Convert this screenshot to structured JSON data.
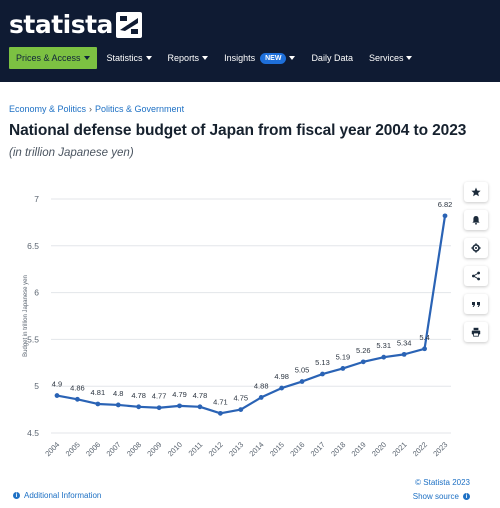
{
  "brand": {
    "name": "statista"
  },
  "nav": {
    "items": [
      {
        "label": "Prices & Access",
        "dropdown": true,
        "primary": true
      },
      {
        "label": "Statistics",
        "dropdown": true
      },
      {
        "label": "Reports",
        "dropdown": true
      },
      {
        "label": "Insights",
        "dropdown": true,
        "badge": "NEW"
      },
      {
        "label": "Daily Data",
        "dropdown": false
      },
      {
        "label": "Services",
        "dropdown": true
      }
    ]
  },
  "breadcrumb": [
    "Economy & Politics",
    "Politics & Government"
  ],
  "page": {
    "title": "National defense budget of Japan from fiscal year 2004 to 2023",
    "subtitle": "(in trillion Japanese yen)"
  },
  "toolbar": {
    "icons": [
      "star-icon",
      "bell-icon",
      "gear-icon",
      "share-icon",
      "quote-icon",
      "print-icon"
    ]
  },
  "footer": {
    "copyright": "© Statista 2023",
    "additional_info": "Additional Information",
    "show_source": "Show source"
  },
  "colors": {
    "header_bg": "#0f1b33",
    "accent_green": "#7cc142",
    "link_blue": "#1d70c4",
    "series_blue": "#2a63b5",
    "badge_blue": "#1e6fd9"
  },
  "chart_data": {
    "type": "line",
    "title": "",
    "xlabel": "",
    "ylabel": "Budget in trillion Japanese yen",
    "ylim": [
      4.5,
      7
    ],
    "yticks": [
      4.5,
      5,
      5.5,
      6,
      6.5,
      7
    ],
    "grid": true,
    "x": [
      "2004",
      "2005",
      "2006",
      "2007",
      "2008",
      "2009",
      "2010",
      "2011",
      "2012",
      "2013",
      "2014",
      "2015",
      "2016",
      "2017",
      "2018",
      "2019",
      "2020",
      "2021",
      "2022",
      "2023"
    ],
    "series": [
      {
        "name": "",
        "values": [
          4.9,
          4.86,
          4.81,
          4.8,
          4.78,
          4.77,
          4.79,
          4.78,
          4.71,
          4.75,
          4.88,
          4.98,
          5.05,
          5.13,
          5.19,
          5.26,
          5.31,
          5.34,
          5.4,
          6.82
        ],
        "labels": [
          "4.9",
          "4.86",
          "4.81",
          "4.8",
          "4.78",
          "4.77",
          "4.79",
          "4.78",
          "4.71",
          "4.75",
          "4.88",
          "4.98",
          "5.05",
          "5.13",
          "5.19",
          "5.26",
          "5.31",
          "5.34",
          "5.4",
          "6.82"
        ]
      }
    ]
  }
}
